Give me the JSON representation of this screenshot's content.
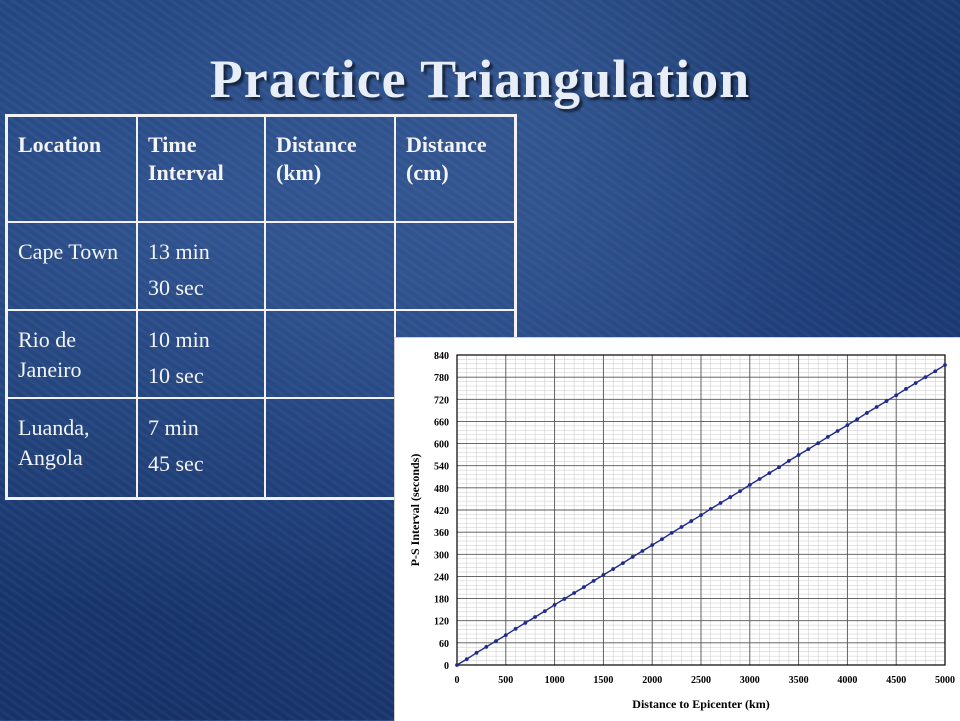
{
  "slide": {
    "title": "Practice Triangulation"
  },
  "table": {
    "headers": [
      "Location",
      "Time Interval",
      "Distance (km)",
      "Distance (cm)"
    ],
    "rows": [
      {
        "location": "Cape Town",
        "time": [
          "13 min",
          "30 sec"
        ],
        "distance_km": "",
        "distance_cm": ""
      },
      {
        "location": "Rio de Janeiro",
        "time": [
          "10 min",
          "10 sec"
        ],
        "distance_km": "",
        "distance_cm": ""
      },
      {
        "location": "Luanda, Angola",
        "time": [
          "7 min",
          "45 sec"
        ],
        "distance_km": "",
        "distance_cm": ""
      }
    ]
  },
  "chart_data": {
    "type": "line",
    "title": "",
    "xlabel": "Distance to Epicenter (km)",
    "ylabel": "P-S Interval (seconds)",
    "xlim": [
      0,
      5000
    ],
    "ylim": [
      0,
      840
    ],
    "x_ticks": [
      0,
      500,
      1000,
      1500,
      2000,
      2500,
      3000,
      3500,
      4000,
      4500,
      5000
    ],
    "y_ticks": [
      0,
      60,
      120,
      180,
      240,
      300,
      360,
      420,
      480,
      540,
      600,
      660,
      720,
      780,
      840
    ],
    "grid": true,
    "legend": "none",
    "series": [
      {
        "color": "#1f2a8c",
        "x": [
          0,
          100,
          200,
          300,
          400,
          500,
          600,
          700,
          800,
          900,
          1000,
          1100,
          1200,
          1300,
          1400,
          1500,
          1600,
          1700,
          1800,
          1900,
          2000,
          2100,
          2200,
          2300,
          2400,
          2500,
          2600,
          2700,
          2800,
          2900,
          3000,
          3100,
          3200,
          3300,
          3400,
          3500,
          3600,
          3700,
          3800,
          3900,
          4000,
          4100,
          4200,
          4300,
          4400,
          4500,
          4600,
          4700,
          4800,
          4900,
          5000
        ],
        "y": [
          0,
          16,
          33,
          49,
          65,
          81,
          98,
          114,
          130,
          146,
          163,
          179,
          195,
          211,
          228,
          244,
          260,
          276,
          293,
          309,
          325,
          341,
          358,
          374,
          390,
          406,
          423,
          439,
          455,
          471,
          488,
          504,
          520,
          536,
          553,
          569,
          585,
          601,
          618,
          634,
          650,
          666,
          683,
          699,
          715,
          731,
          748,
          764,
          780,
          796,
          813
        ]
      }
    ]
  }
}
